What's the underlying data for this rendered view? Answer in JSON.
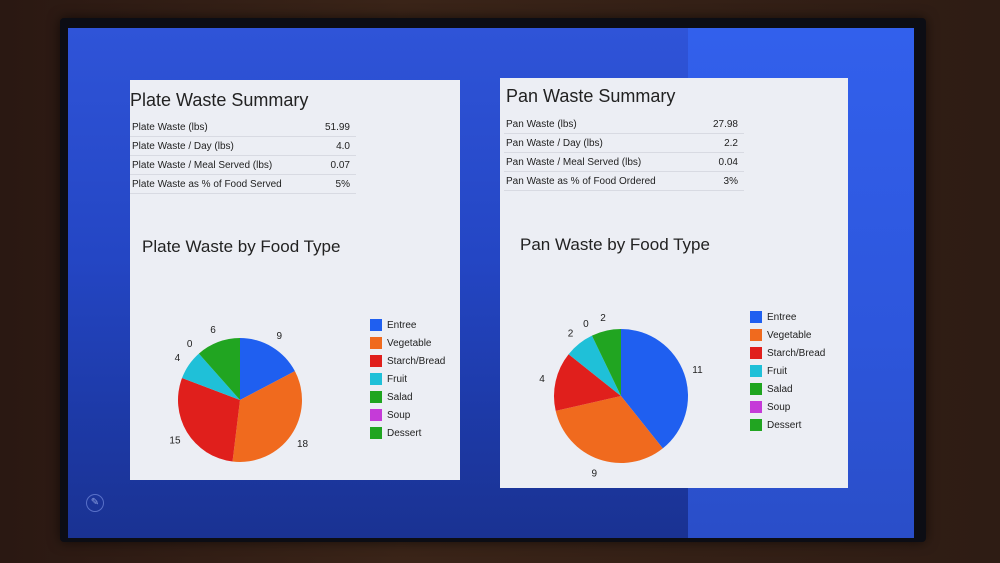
{
  "plate_summary": {
    "title": "Plate Waste Summary",
    "rows": [
      {
        "label": "Plate Waste (lbs)",
        "value": "51.99"
      },
      {
        "label": "Plate Waste / Day (lbs)",
        "value": "4.0"
      },
      {
        "label": "Plate Waste / Meal Served (lbs)",
        "value": "0.07"
      },
      {
        "label": "Plate Waste as % of Food Served",
        "value": "5%"
      }
    ]
  },
  "pan_summary": {
    "title": "Pan Waste Summary",
    "rows": [
      {
        "label": "Pan Waste (lbs)",
        "value": "27.98"
      },
      {
        "label": "Pan Waste / Day (lbs)",
        "value": "2.2"
      },
      {
        "label": "Pan Waste / Meal Served (lbs)",
        "value": "0.04"
      },
      {
        "label": "Pan Waste as % of Food Ordered",
        "value": "3%"
      }
    ]
  },
  "colors": {
    "Entree": "#1f5ff0",
    "Vegetable": "#f06a1e",
    "Starch/Bread": "#e01f1c",
    "Fruit": "#1fc0d8",
    "Salad": "#1fa51f",
    "Soup": "#c53bd8",
    "Dessert": "#21a521"
  },
  "icons": {
    "corner": "pencil-icon"
  },
  "chart_data": [
    {
      "type": "pie",
      "title": "Plate Waste by Food Type",
      "categories": [
        "Entree",
        "Vegetable",
        "Starch/Bread",
        "Fruit",
        "Salad",
        "Soup",
        "Dessert"
      ],
      "values": [
        9,
        18,
        15,
        4,
        0,
        0,
        6
      ],
      "legend": "right"
    },
    {
      "type": "pie",
      "title": "Pan Waste by Food Type",
      "categories": [
        "Entree",
        "Vegetable",
        "Starch/Bread",
        "Fruit",
        "Salad",
        "Soup",
        "Dessert"
      ],
      "values": [
        11,
        9,
        4,
        2,
        0,
        0,
        2
      ],
      "legend": "right"
    }
  ]
}
